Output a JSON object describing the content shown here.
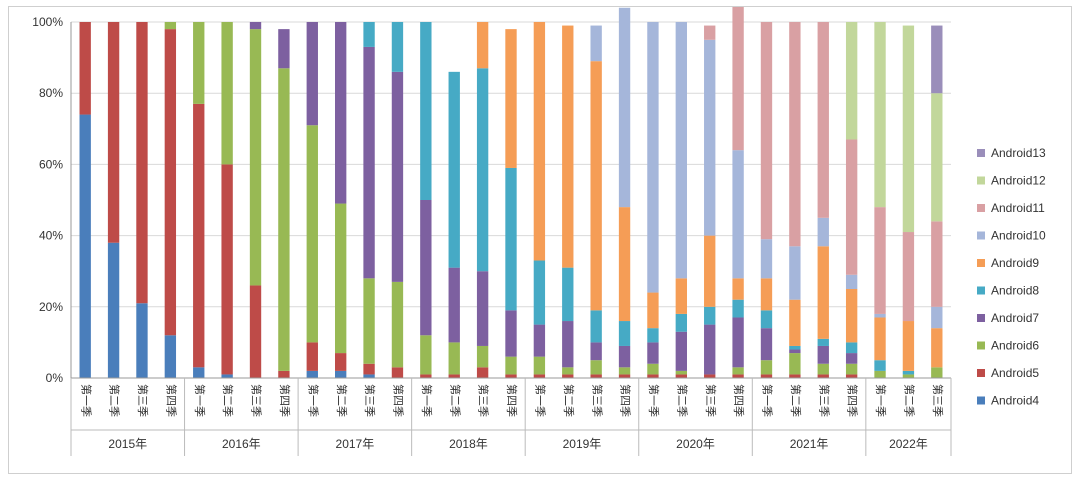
{
  "chart_data": {
    "type": "bar",
    "stacked": true,
    "percent": true,
    "ylim": [
      0,
      100
    ],
    "yticks": [
      "0%",
      "20%",
      "40%",
      "60%",
      "80%",
      "100%"
    ],
    "grid": true,
    "legend_position": "right",
    "groups": [
      {
        "label": "2015年",
        "quarters": [
          "第一季",
          "第二季",
          "第三季",
          "第四季"
        ]
      },
      {
        "label": "2016年",
        "quarters": [
          "第一季",
          "第二季",
          "第三季",
          "第四季"
        ]
      },
      {
        "label": "2017年",
        "quarters": [
          "第一季",
          "第二季",
          "第三季",
          "第四季"
        ]
      },
      {
        "label": "2018年",
        "quarters": [
          "第一季",
          "第二季",
          "第三季",
          "第四季"
        ]
      },
      {
        "label": "2019年",
        "quarters": [
          "第一季",
          "第二季",
          "第三季",
          "第四季"
        ]
      },
      {
        "label": "2020年",
        "quarters": [
          "第一季",
          "第二季",
          "第三季",
          "第四季"
        ]
      },
      {
        "label": "2021年",
        "quarters": [
          "第一季",
          "第二季",
          "第三季",
          "第四季"
        ]
      },
      {
        "label": "2022年",
        "quarters": [
          "第一季",
          "第二季",
          "第三季"
        ]
      }
    ],
    "series": [
      {
        "name": "Android4",
        "color": "#4a7ebb",
        "values": [
          74,
          38,
          21,
          12,
          3,
          1,
          0,
          0,
          2,
          2,
          1,
          0,
          0,
          0,
          0,
          0,
          0,
          0,
          0,
          0,
          0,
          0,
          0,
          0,
          0,
          0,
          0,
          0,
          0,
          0,
          0
        ]
      },
      {
        "name": "Android5",
        "color": "#be4b48",
        "values": [
          26,
          62,
          79,
          86,
          74,
          59,
          26,
          2,
          8,
          5,
          3,
          3,
          1,
          1,
          3,
          1,
          1,
          1,
          1,
          1,
          1,
          1,
          1,
          1,
          1,
          1,
          1,
          1,
          0,
          0,
          0
        ]
      },
      {
        "name": "Android6",
        "color": "#98b954",
        "values": [
          0,
          0,
          0,
          2,
          23,
          40,
          72,
          85,
          61,
          42,
          24,
          24,
          11,
          9,
          6,
          5,
          5,
          2,
          4,
          2,
          3,
          1,
          0,
          2,
          4,
          6,
          3,
          3,
          2,
          1,
          3
        ]
      },
      {
        "name": "Android7",
        "color": "#7d60a0",
        "values": [
          0,
          0,
          0,
          0,
          0,
          0,
          2,
          11,
          29,
          51,
          65,
          59,
          38,
          21,
          21,
          13,
          9,
          13,
          5,
          6,
          6,
          11,
          14,
          14,
          9,
          1,
          5,
          3,
          0,
          0,
          0
        ]
      },
      {
        "name": "Android8",
        "color": "#46aac5",
        "values": [
          0,
          0,
          0,
          0,
          0,
          0,
          0,
          0,
          0,
          0,
          7,
          14,
          50,
          55,
          57,
          40,
          18,
          15,
          9,
          7,
          4,
          5,
          5,
          5,
          5,
          1,
          2,
          3,
          3,
          1,
          0
        ]
      },
      {
        "name": "Android9",
        "color": "#f59d56",
        "values": [
          0,
          0,
          0,
          0,
          0,
          0,
          0,
          0,
          0,
          0,
          0,
          0,
          0,
          0,
          13,
          39,
          67,
          68,
          70,
          32,
          10,
          10,
          20,
          6,
          9,
          13,
          26,
          15,
          12,
          14,
          11
        ]
      },
      {
        "name": "Android10",
        "color": "#a5b6da",
        "values": [
          0,
          0,
          0,
          0,
          0,
          0,
          0,
          0,
          0,
          0,
          0,
          0,
          0,
          0,
          0,
          0,
          0,
          0,
          10,
          56,
          76,
          72,
          55,
          36,
          11,
          15,
          8,
          4,
          1,
          0,
          6
        ]
      },
      {
        "name": "Android11",
        "color": "#d9a0a3",
        "values": [
          0,
          0,
          0,
          0,
          0,
          0,
          0,
          0,
          0,
          0,
          0,
          0,
          0,
          0,
          0,
          0,
          0,
          0,
          0,
          0,
          0,
          0,
          4,
          41,
          61,
          63,
          55,
          38,
          30,
          25,
          24
        ]
      },
      {
        "name": "Android12",
        "color": "#c2d79b",
        "values": [
          0,
          0,
          0,
          0,
          0,
          0,
          0,
          0,
          0,
          0,
          0,
          0,
          0,
          0,
          0,
          0,
          0,
          0,
          0,
          0,
          0,
          0,
          0,
          0,
          0,
          0,
          0,
          33,
          52,
          58,
          36
        ]
      },
      {
        "name": "Android13",
        "color": "#9a8eba",
        "values": [
          0,
          0,
          0,
          0,
          0,
          0,
          0,
          0,
          0,
          0,
          0,
          0,
          0,
          0,
          0,
          0,
          0,
          0,
          0,
          0,
          0,
          0,
          0,
          0,
          0,
          0,
          0,
          0,
          0,
          0,
          19
        ]
      }
    ]
  }
}
